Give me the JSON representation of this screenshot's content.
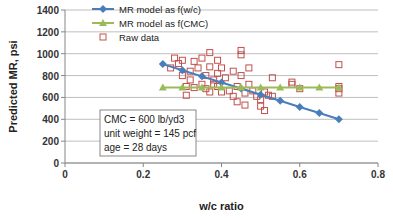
{
  "chart_data": {
    "type": "scatter",
    "x_label": "w/c ratio",
    "y_label": "Predicted MR, psi",
    "annotations": [
      "CMC = 600 lb/yd3",
      "unit weight = 145 pcf",
      "age = 28 days"
    ],
    "xlim": [
      0,
      0.8
    ],
    "xticks": [
      0,
      0.2,
      0.4,
      0.6,
      0.8
    ],
    "ylim": [
      0,
      1400
    ],
    "yticks": [
      0,
      200,
      400,
      600,
      800,
      1000,
      1200,
      1400
    ],
    "grid": true,
    "legend": "top-left",
    "series": [
      {
        "name": "MR model as f(w/c)",
        "color": "#4a7ebb",
        "marker": "diamond",
        "line_style": "solid",
        "x": [
          0.25,
          0.3,
          0.35,
          0.4,
          0.45,
          0.5,
          0.55,
          0.6,
          0.65,
          0.7
        ],
        "values": [
          905,
          849,
          793,
          737,
          681,
          625,
          569,
          513,
          457,
          400
        ]
      },
      {
        "name": "MR model as f(CMC)",
        "color": "#9bbb59",
        "marker": "triangle",
        "line_style": "solid",
        "x": [
          0.25,
          0.3,
          0.35,
          0.4,
          0.45,
          0.5,
          0.55,
          0.6,
          0.65,
          0.7
        ],
        "values": [
          690,
          690,
          690,
          690,
          690,
          690,
          690,
          690,
          690,
          690
        ]
      },
      {
        "name": "Raw data",
        "color": "#c0504d",
        "marker": "hollow-square",
        "line_style": "none",
        "x": [
          0.27,
          0.28,
          0.29,
          0.3,
          0.3,
          0.31,
          0.31,
          0.32,
          0.32,
          0.33,
          0.33,
          0.34,
          0.35,
          0.35,
          0.36,
          0.36,
          0.37,
          0.37,
          0.37,
          0.38,
          0.38,
          0.39,
          0.39,
          0.39,
          0.4,
          0.4,
          0.41,
          0.42,
          0.43,
          0.43,
          0.44,
          0.44,
          0.45,
          0.45,
          0.45,
          0.46,
          0.46,
          0.47,
          0.47,
          0.48,
          0.49,
          0.5,
          0.5,
          0.51,
          0.51,
          0.52,
          0.53,
          0.53,
          0.58,
          0.58,
          0.6,
          0.7,
          0.7,
          0.7,
          0.7
        ],
        "values": [
          870,
          960,
          910,
          940,
          800,
          700,
          620,
          840,
          760,
          930,
          690,
          870,
          720,
          960,
          800,
          680,
          1010,
          880,
          650,
          760,
          720,
          940,
          820,
          700,
          650,
          870,
          780,
          660,
          610,
          840,
          700,
          560,
          1030,
          990,
          800,
          640,
          530,
          870,
          720,
          660,
          610,
          580,
          520,
          650,
          480,
          620,
          780,
          610,
          720,
          740,
          680,
          900,
          700,
          680,
          640
        ]
      }
    ]
  }
}
